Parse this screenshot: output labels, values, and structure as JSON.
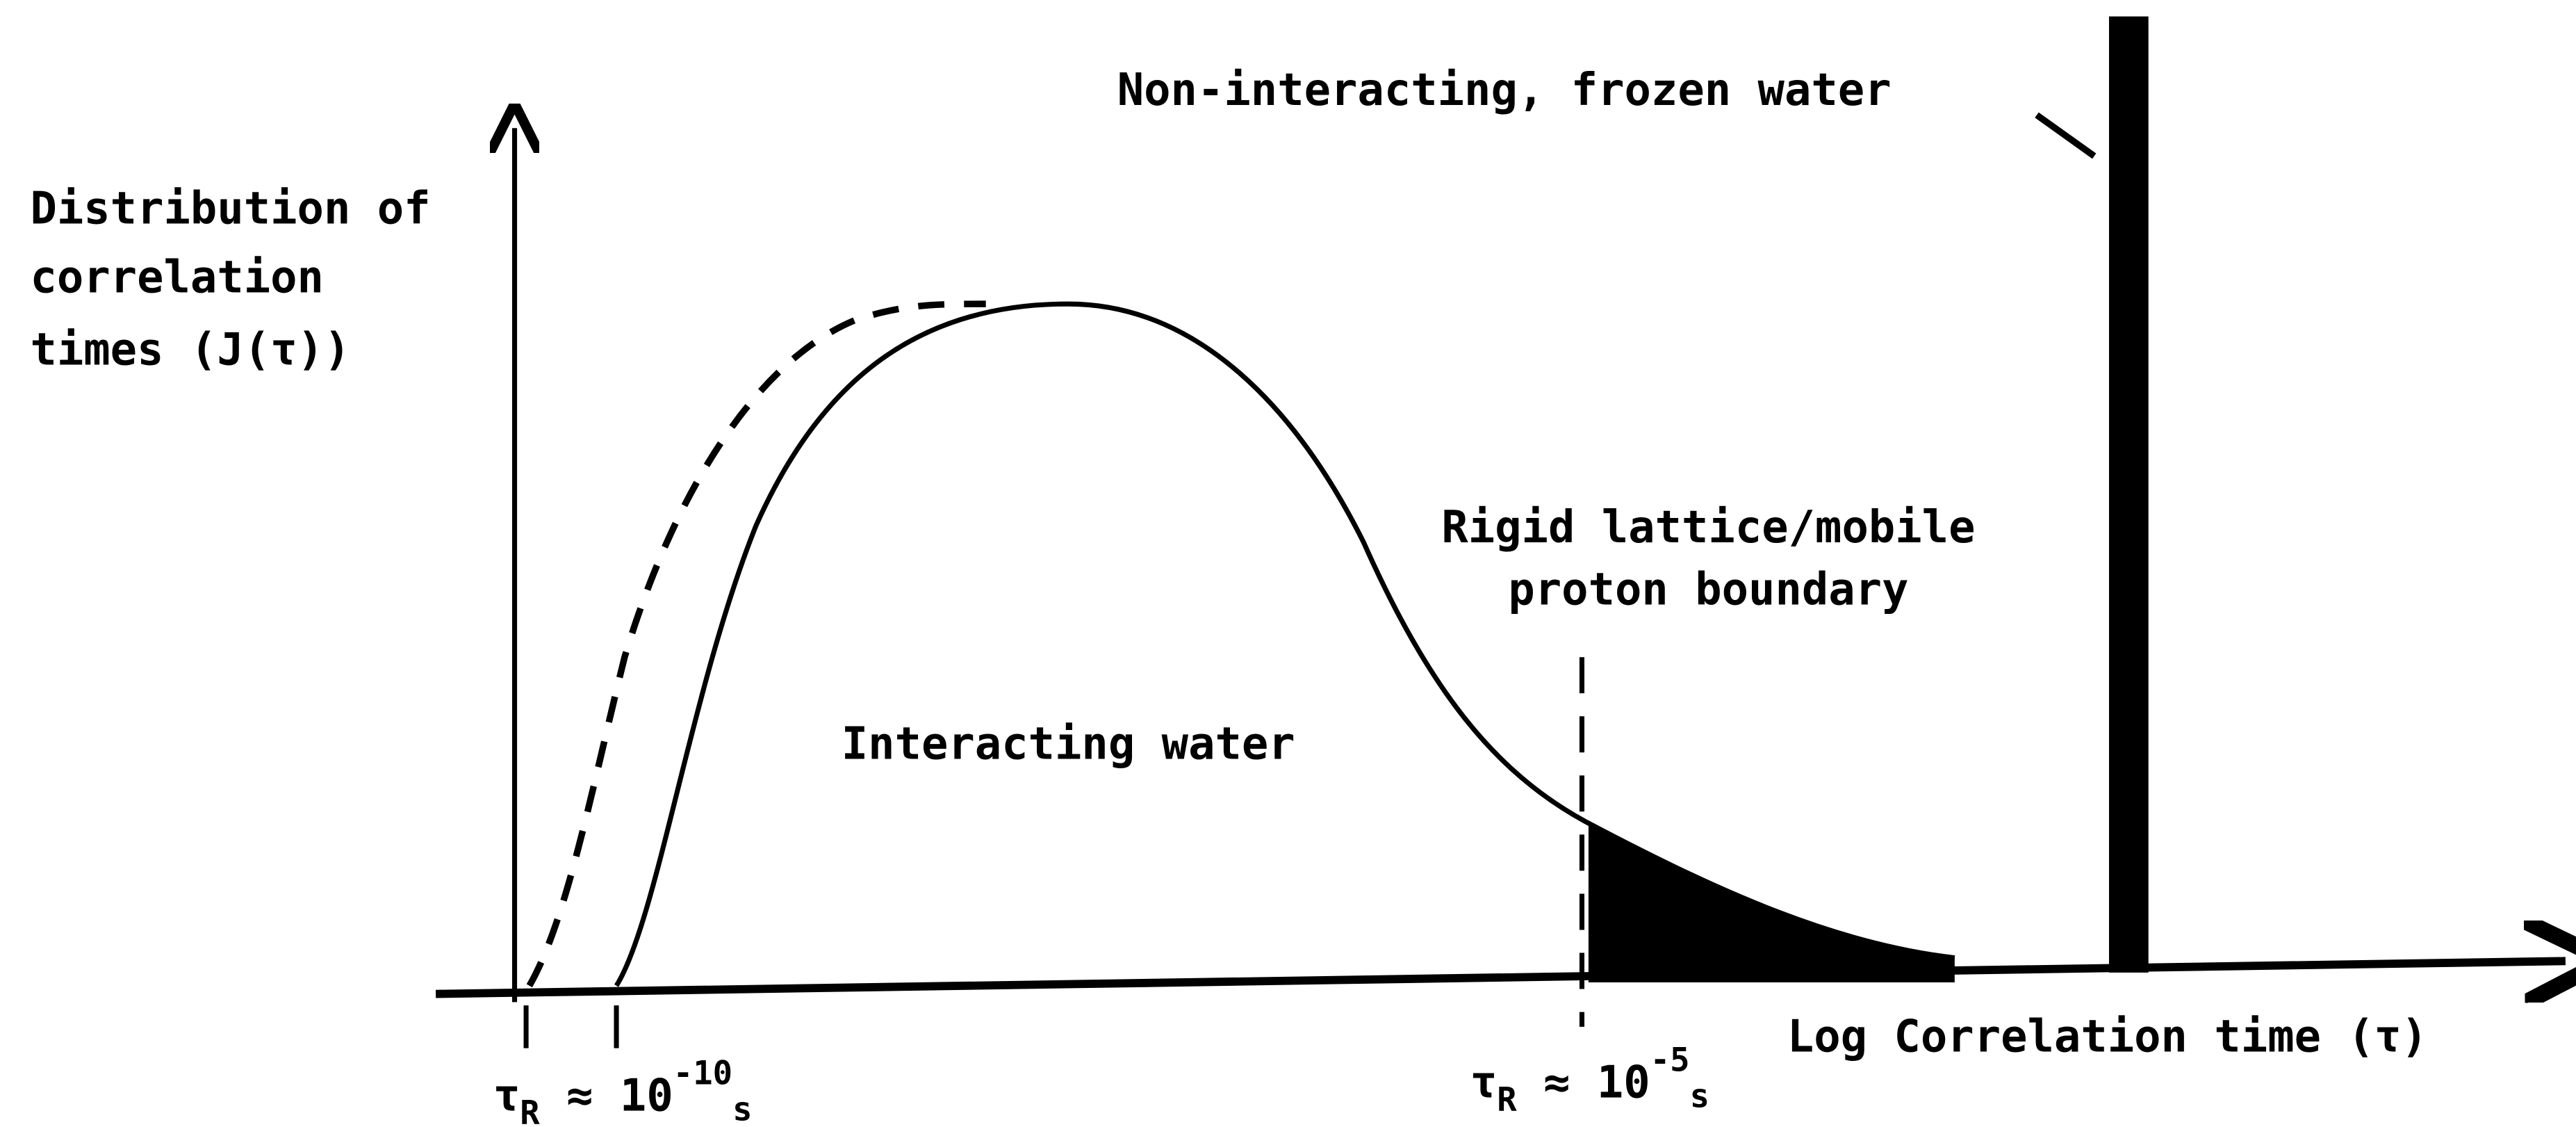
{
  "y_axis_label": [
    "Distribution of",
    "correlation",
    "times (J(τ))"
  ],
  "x_axis_label": "Log Correlation time (τ)",
  "annotations": {
    "frozen": "Non-interacting, frozen water",
    "boundary": [
      "Rigid lattice/mobile",
      "proton boundary"
    ],
    "interacting": "Interacting water"
  },
  "markers": [
    {
      "symbol": "τ",
      "sub": "R",
      "mid": " ≈ 10",
      "sup": "-10",
      "unit": "s"
    },
    {
      "symbol": "τ",
      "sub": "R",
      "mid": " ≈ 10",
      "sup": "-5",
      "unit": "s"
    }
  ]
}
